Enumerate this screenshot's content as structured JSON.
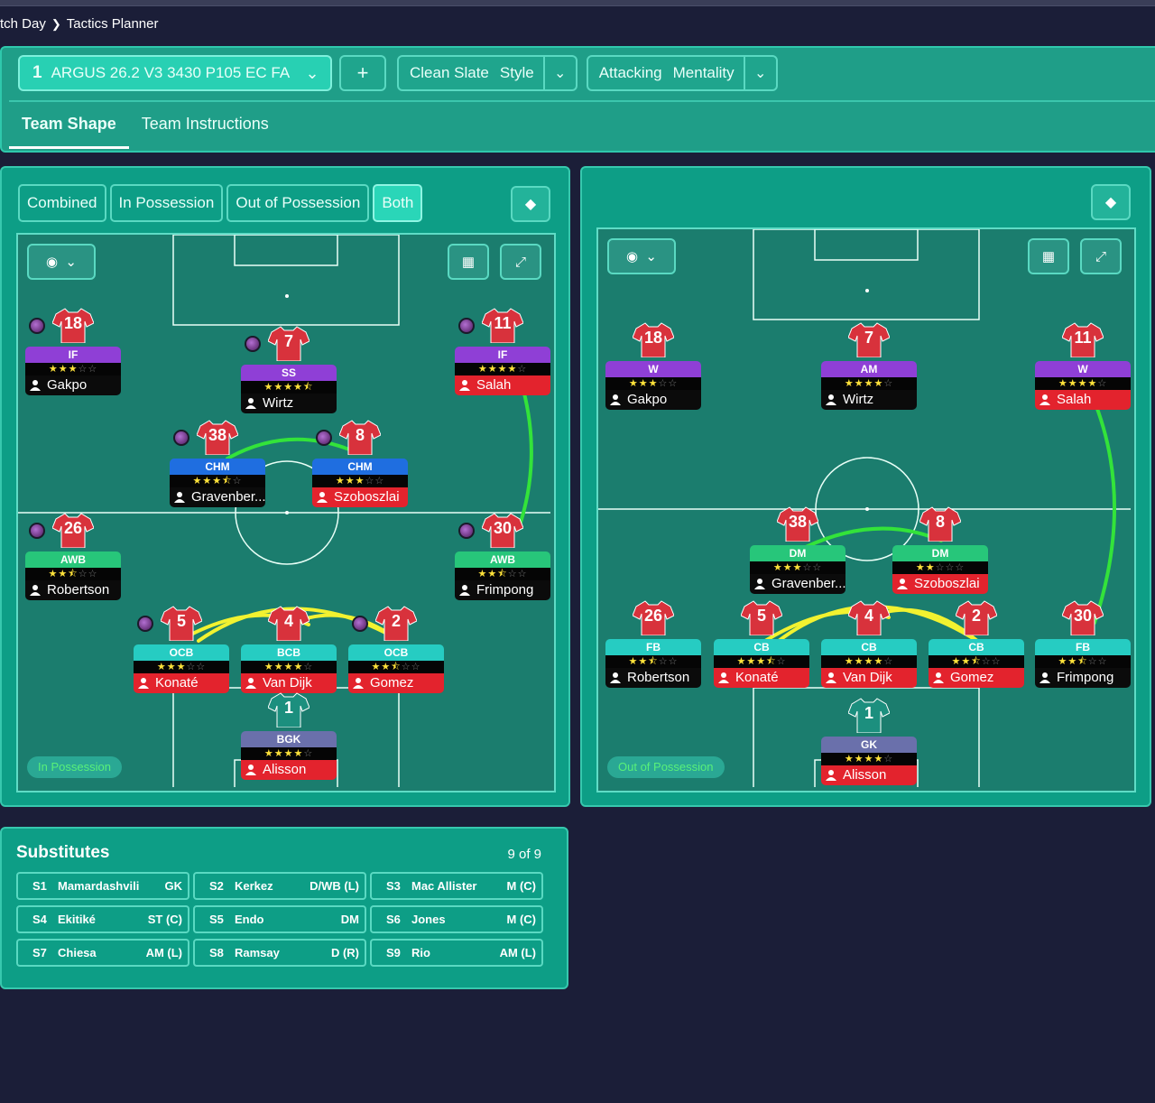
{
  "breadcrumb": {
    "items": [
      "tch Day",
      "Tactics Planner"
    ]
  },
  "header": {
    "tactic_number": "1",
    "tactic_name": "ARGUS 26.2 V3 3430 P105 EC FA",
    "add_label": "+",
    "style_value": "Clean Slate",
    "style_label": "Style",
    "mentality_value": "Attacking",
    "mentality_label": "Mentality",
    "tabs": [
      {
        "label": "Team Shape"
      },
      {
        "label": "Team Instructions"
      }
    ]
  },
  "left_panel": {
    "view_tabs": [
      "Combined",
      "In Possession",
      "Out of Possession",
      "Both"
    ],
    "phase_label": "In Possession",
    "players": [
      {
        "number": "18",
        "role": "IF",
        "stars": "3",
        "name": "Gakpo"
      },
      {
        "number": "7",
        "role": "SS",
        "stars": "4.5",
        "name": "Wirtz"
      },
      {
        "number": "11",
        "role": "IF",
        "stars": "4",
        "name": "Salah"
      },
      {
        "number": "38",
        "role": "CHM",
        "stars": "3.5",
        "name": "Gravenber..."
      },
      {
        "number": "8",
        "role": "CHM",
        "stars": "3",
        "name": "Szoboszlai"
      },
      {
        "number": "26",
        "role": "AWB",
        "stars": "2.5",
        "name": "Robertson"
      },
      {
        "number": "30",
        "role": "AWB",
        "stars": "2.5",
        "name": "Frimpong"
      },
      {
        "number": "5",
        "role": "OCB",
        "stars": "3",
        "name": "Konaté"
      },
      {
        "number": "4",
        "role": "BCB",
        "stars": "4",
        "name": "Van Dijk"
      },
      {
        "number": "2",
        "role": "OCB",
        "stars": "2.5",
        "name": "Gomez"
      },
      {
        "number": "1",
        "role": "BGK",
        "stars": "4",
        "name": "Alisson"
      }
    ]
  },
  "right_panel": {
    "phase_label": "Out of Possession",
    "players": [
      {
        "number": "18",
        "role": "W",
        "stars": "3",
        "name": "Gakpo"
      },
      {
        "number": "7",
        "role": "AM",
        "stars": "4",
        "name": "Wirtz"
      },
      {
        "number": "11",
        "role": "W",
        "stars": "4",
        "name": "Salah"
      },
      {
        "number": "38",
        "role": "DM",
        "stars": "3",
        "name": "Gravenber..."
      },
      {
        "number": "8",
        "role": "DM",
        "stars": "2",
        "name": "Szoboszlai"
      },
      {
        "number": "26",
        "role": "FB",
        "stars": "2.5",
        "name": "Robertson"
      },
      {
        "number": "5",
        "role": "CB",
        "stars": "3.5",
        "name": "Konaté"
      },
      {
        "number": "4",
        "role": "CB",
        "stars": "4",
        "name": "Van Dijk"
      },
      {
        "number": "2",
        "role": "CB",
        "stars": "2.5",
        "name": "Gomez"
      },
      {
        "number": "30",
        "role": "FB",
        "stars": "2.5",
        "name": "Frimpong"
      },
      {
        "number": "1",
        "role": "GK",
        "stars": "4",
        "name": "Alisson"
      }
    ]
  },
  "substitutes": {
    "title": "Substitutes",
    "count": "9 of 9",
    "items": [
      {
        "slot": "S1",
        "name": "Mamardashvili",
        "position": "GK"
      },
      {
        "slot": "S2",
        "name": "Kerkez",
        "position": "D/WB (L)"
      },
      {
        "slot": "S3",
        "name": "Mac Allister",
        "position": "M (C)"
      },
      {
        "slot": "S4",
        "name": "Ekitiké",
        "position": "ST (C)"
      },
      {
        "slot": "S5",
        "name": "Endo",
        "position": "DM"
      },
      {
        "slot": "S6",
        "name": "Jones",
        "position": "M (C)"
      },
      {
        "slot": "S7",
        "name": "Chiesa",
        "position": "AM (L)"
      },
      {
        "slot": "S8",
        "name": "Ramsay",
        "position": "D (R)"
      },
      {
        "slot": "S9",
        "name": "Rio",
        "position": "AM (L)"
      }
    ]
  },
  "colors": {
    "panel": "#0d9e86",
    "pitch": "#1b7d6e",
    "link_green": "#33e33a",
    "link_yellow": "#f2f230",
    "star": "#ffe23a"
  }
}
